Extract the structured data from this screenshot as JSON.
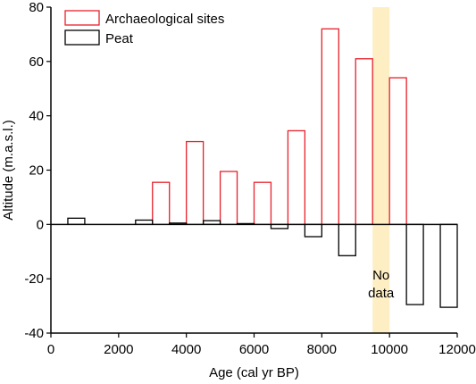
{
  "chart_data": {
    "type": "bar",
    "xlabel": "Age (cal yr BP)",
    "ylabel": "Altitude (m.a.s.l.)",
    "xlim": [
      0,
      12000
    ],
    "ylim": [
      -40,
      80
    ],
    "xticks": [
      0,
      2000,
      4000,
      6000,
      8000,
      10000,
      12000
    ],
    "yticks": [
      -40,
      -20,
      0,
      20,
      40,
      60,
      80
    ],
    "grid": false,
    "legend_position": "top-left",
    "series": [
      {
        "name": "Archaeological sites",
        "color": "#e8202a",
        "bars": [
          {
            "x": 3250,
            "value": 15.5
          },
          {
            "x": 4250,
            "value": 30.5
          },
          {
            "x": 5250,
            "value": 19.5
          },
          {
            "x": 6250,
            "value": 15.5
          },
          {
            "x": 7250,
            "value": 34.5
          },
          {
            "x": 8250,
            "value": 72
          },
          {
            "x": 9250,
            "value": 61
          },
          {
            "x": 10250,
            "value": 54
          }
        ]
      },
      {
        "name": "Peat",
        "color": "#000000",
        "bars": [
          {
            "x": 750,
            "value": 2.3
          },
          {
            "x": 2750,
            "value": 1.6
          },
          {
            "x": 3750,
            "value": 0.5
          },
          {
            "x": 4750,
            "value": 1.4
          },
          {
            "x": 5750,
            "value": 0.3
          },
          {
            "x": 6750,
            "value": -1.5
          },
          {
            "x": 7750,
            "value": -4.5
          },
          {
            "x": 8750,
            "value": -11.5
          },
          {
            "x": 10750,
            "value": -29.5
          },
          {
            "x": 11750,
            "value": -30.5
          }
        ]
      }
    ],
    "bar_width": 500,
    "no_data_band": {
      "x_range": [
        9500,
        10000
      ],
      "color": "#fdeec4",
      "label_lines": [
        "No",
        "data"
      ]
    }
  }
}
